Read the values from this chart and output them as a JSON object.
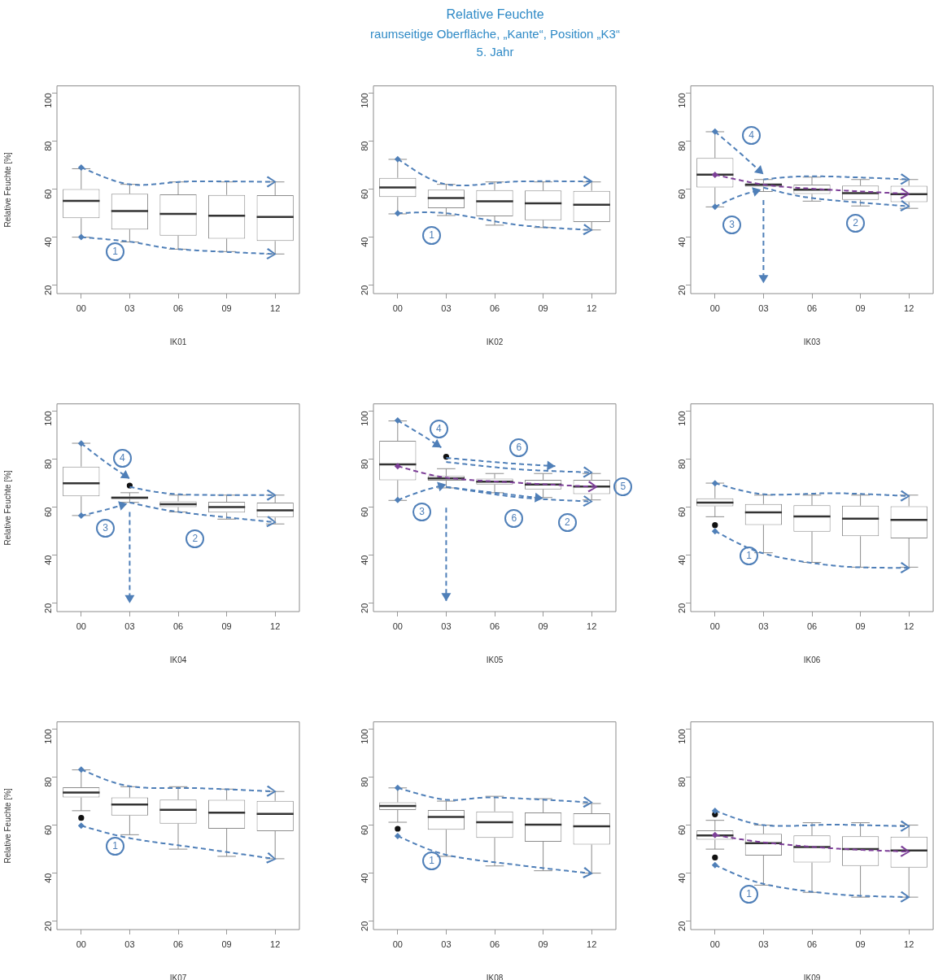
{
  "chart_data": [
    {
      "type": "box",
      "xlabel": "IK01",
      "ylabel": "Relative Feuchte [%]",
      "categories": [
        "00",
        "03",
        "06",
        "09",
        "12"
      ],
      "color": "#8c8c8c",
      "ylim": [
        16.5,
        103
      ],
      "yticks": [
        20,
        40,
        60,
        80,
        100
      ],
      "annotations": [
        "1"
      ],
      "boxes": [
        {
          "low": 40,
          "q1": 47.9,
          "median": 55.1,
          "q3": 60,
          "high": 68.5
        },
        {
          "low": 38,
          "q1": 43.2,
          "median": 50.9,
          "q3": 58.1,
          "high": 62
        },
        {
          "low": 35,
          "q1": 40.6,
          "median": 49.7,
          "q3": 57.8,
          "high": 63
        },
        {
          "low": 34,
          "q1": 39.4,
          "median": 48.9,
          "q3": 57.6,
          "high": 63
        },
        {
          "low": 33,
          "q1": 38.4,
          "median": 48.4,
          "q3": 57.5,
          "high": 63
        }
      ]
    },
    {
      "type": "box",
      "title": "Relative Feuchte",
      "subtitle": "raumseitige Oberfläche, „Kante“, Position „K3“\n5. Jahr",
      "xlabel": "IK02",
      "categories": [
        "00",
        "03",
        "06",
        "09",
        "12"
      ],
      "color": "#8c8c8c",
      "ylim": [
        16.5,
        103
      ],
      "yticks": [
        20,
        40,
        60,
        80,
        100
      ],
      "annotations": [
        "1"
      ],
      "boxes": [
        {
          "low": 49.7,
          "q1": 56.7,
          "median": 60.7,
          "q3": 64.7,
          "high": 72.4
        },
        {
          "low": 49,
          "q1": 52.1,
          "median": 56.3,
          "q3": 59.8,
          "high": 62
        },
        {
          "low": 45,
          "q1": 48.7,
          "median": 54.9,
          "q3": 59.6,
          "high": 63
        },
        {
          "low": 44,
          "q1": 47.1,
          "median": 54.1,
          "q3": 59.4,
          "high": 63
        },
        {
          "low": 43,
          "q1": 46.3,
          "median": 53.5,
          "q3": 59.3,
          "high": 63
        }
      ]
    },
    {
      "type": "box",
      "xlabel": "IK03",
      "categories": [
        "00",
        "03",
        "06",
        "09",
        "12"
      ],
      "color": "#8c8c8c",
      "ylim": [
        16.5,
        103
      ],
      "yticks": [
        20,
        40,
        60,
        80,
        100
      ],
      "annotations": [
        "4",
        "3",
        "2"
      ],
      "boxes": [
        {
          "low": 52.6,
          "q1": 60.7,
          "median": 66,
          "q3": 73,
          "high": 83.9
        },
        {
          "low": 59,
          "q1": 61,
          "median": 61.8,
          "q3": 62.5,
          "high": 64
        },
        {
          "low": 55,
          "q1": 58,
          "median": 59.8,
          "q3": 61.9,
          "high": 65
        },
        {
          "low": 53,
          "q1": 55.5,
          "median": 58.3,
          "q3": 61.5,
          "high": 64
        },
        {
          "low": 52,
          "q1": 54.6,
          "median": 57.9,
          "q3": 61.4,
          "high": 64
        }
      ]
    },
    {
      "type": "box",
      "xlabel": "IK04",
      "ylabel": "Relative Feuchte [%]",
      "categories": [
        "00",
        "03",
        "06",
        "09",
        "12"
      ],
      "color": "#8c8c8c",
      "ylim": [
        16.5,
        103
      ],
      "yticks": [
        20,
        40,
        60,
        80,
        100
      ],
      "annotations": [
        "4",
        "3",
        "2"
      ],
      "boxes": [
        {
          "low": 56.5,
          "q1": 64.5,
          "median": 69.9,
          "q3": 76.9,
          "high": 86.6
        },
        {
          "low": 62,
          "q1": 63.4,
          "median": 63.9,
          "q3": 64.4,
          "high": 66,
          "outliers": [
            69
          ]
        },
        {
          "low": 58,
          "q1": 60,
          "median": 61.2,
          "q3": 62.4,
          "high": 65
        },
        {
          "low": 55,
          "q1": 57.7,
          "median": 60,
          "q3": 62.2,
          "high": 65
        },
        {
          "low": 53,
          "q1": 55.7,
          "median": 58.7,
          "q3": 61.9,
          "high": 65
        }
      ]
    },
    {
      "type": "box",
      "xlabel": "IK05",
      "categories": [
        "00",
        "03",
        "06",
        "09",
        "12"
      ],
      "color": "#8c8c8c",
      "ylim": [
        16.5,
        103
      ],
      "yticks": [
        20,
        40,
        60,
        80,
        100
      ],
      "annotations": [
        "4",
        "6",
        "5",
        "6",
        "2",
        "3"
      ],
      "boxes": [
        {
          "low": 62.8,
          "q1": 71.2,
          "median": 77.8,
          "q3": 87.6,
          "high": 95.9
        },
        {
          "low": 68,
          "q1": 71,
          "median": 72,
          "q3": 73,
          "high": 76,
          "outliers": [
            81
          ]
        },
        {
          "low": 66,
          "q1": 69.4,
          "median": 70.6,
          "q3": 71.9,
          "high": 74
        },
        {
          "low": 64,
          "q1": 67.4,
          "median": 69.4,
          "q3": 71.4,
          "high": 74
        },
        {
          "low": 63,
          "q1": 65.4,
          "median": 68.6,
          "q3": 71.4,
          "high": 74
        }
      ]
    },
    {
      "type": "box",
      "xlabel": "IK06",
      "categories": [
        "00",
        "03",
        "06",
        "09",
        "12"
      ],
      "color": "#8c8c8c",
      "ylim": [
        16.5,
        103
      ],
      "yticks": [
        20,
        40,
        60,
        80,
        100
      ],
      "annotations": [
        "1"
      ],
      "boxes": [
        {
          "low": 56,
          "q1": 60.4,
          "median": 61.9,
          "q3": 63.7,
          "high": 70,
          "outliers": [
            52.5
          ]
        },
        {
          "low": 41,
          "q1": 52.6,
          "median": 57.8,
          "q3": 61.3,
          "high": 65
        },
        {
          "low": 37,
          "q1": 49.8,
          "median": 56.1,
          "q3": 60.8,
          "high": 65
        },
        {
          "low": 35,
          "q1": 47.9,
          "median": 55.2,
          "q3": 60.6,
          "high": 65
        },
        {
          "low": 35,
          "q1": 47,
          "median": 54.7,
          "q3": 60.4,
          "high": 65
        }
      ]
    },
    {
      "type": "box",
      "xlabel": "IK07",
      "ylabel": "Relative Feuchte [%]",
      "categories": [
        "00",
        "03",
        "06",
        "09",
        "12"
      ],
      "color": "#8c8c8c",
      "ylim": [
        16.5,
        103
      ],
      "yticks": [
        20,
        40,
        60,
        80,
        100
      ],
      "annotations": [
        "1"
      ],
      "boxes": [
        {
          "low": 66,
          "q1": 71.5,
          "median": 73.6,
          "q3": 75.8,
          "high": 83,
          "outliers": [
            63
          ]
        },
        {
          "low": 56,
          "q1": 64,
          "median": 68.6,
          "q3": 71.5,
          "high": 76
        },
        {
          "low": 50,
          "q1": 60.6,
          "median": 66.4,
          "q3": 70.6,
          "high": 76
        },
        {
          "low": 47,
          "q1": 58.5,
          "median": 65.2,
          "q3": 70.5,
          "high": 75
        },
        {
          "low": 46,
          "q1": 57.5,
          "median": 64.7,
          "q3": 70.1,
          "high": 74
        }
      ]
    },
    {
      "type": "box",
      "xlabel": "IK08",
      "categories": [
        "00",
        "03",
        "06",
        "09",
        "12"
      ],
      "color": "#8c8c8c",
      "ylim": [
        16.5,
        103
      ],
      "yticks": [
        20,
        40,
        60,
        80,
        100
      ],
      "annotations": [
        "1"
      ],
      "boxes": [
        {
          "low": 61.2,
          "q1": 66.3,
          "median": 68,
          "q3": 69.5,
          "high": 75.5,
          "outliers": [
            58.5
          ]
        },
        {
          "low": 47,
          "q1": 58.1,
          "median": 63.4,
          "q3": 66.3,
          "high": 70
        },
        {
          "low": 43,
          "q1": 54.7,
          "median": 61.2,
          "q3": 65.7,
          "high": 72
        },
        {
          "low": 41,
          "q1": 53.1,
          "median": 60.2,
          "q3": 65.3,
          "high": 71
        },
        {
          "low": 40,
          "q1": 51.9,
          "median": 59.5,
          "q3": 64.9,
          "high": 69
        }
      ]
    },
    {
      "type": "box",
      "xlabel": "IK09",
      "categories": [
        "00",
        "03",
        "06",
        "09",
        "12"
      ],
      "color": "#8c8c8c",
      "ylim": [
        16.5,
        103
      ],
      "yticks": [
        20,
        40,
        60,
        80,
        100
      ],
      "annotations": [
        "1"
      ],
      "boxes": [
        {
          "low": 50,
          "q1": 53.9,
          "median": 55.7,
          "q3": 57.8,
          "high": 62,
          "outliers": [
            46.5,
            64.5
          ]
        },
        {
          "low": 35,
          "q1": 47.3,
          "median": 52.5,
          "q3": 56.4,
          "high": 60
        },
        {
          "low": 32,
          "q1": 44.4,
          "median": 50.9,
          "q3": 55.7,
          "high": 61
        },
        {
          "low": 30,
          "q1": 43,
          "median": 50,
          "q3": 55.4,
          "high": 61
        },
        {
          "low": 30,
          "q1": 42.3,
          "median": 49.4,
          "q3": 55.2,
          "high": 60
        }
      ]
    }
  ]
}
